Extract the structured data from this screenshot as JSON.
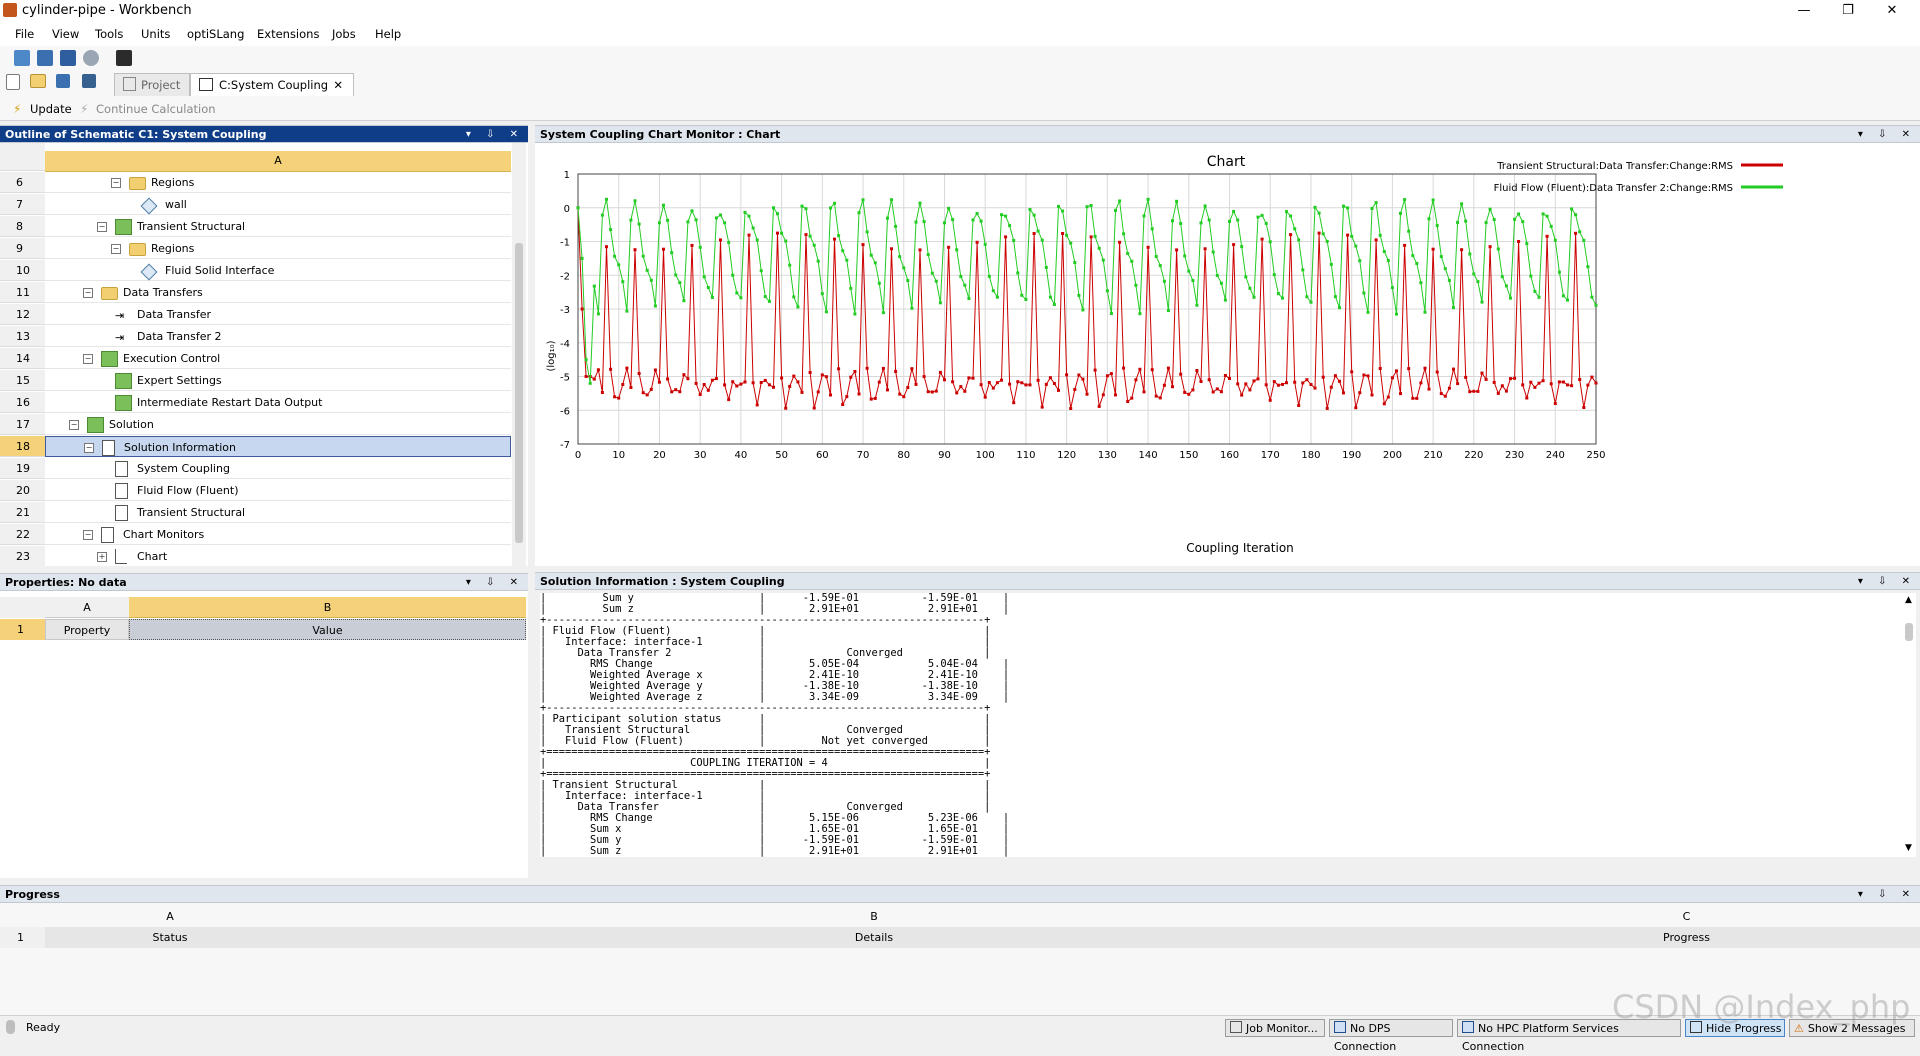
{
  "window": {
    "title": "cylinder-pipe - Workbench",
    "controls": [
      "—",
      "❐",
      "✕"
    ]
  },
  "menu": [
    "File",
    "View",
    "Tools",
    "Units",
    "optiSLang",
    "Extensions",
    "Jobs",
    "Help"
  ],
  "tabs": {
    "project": "Project",
    "system_coupling": "C:System Coupling",
    "close": "✕"
  },
  "actions": {
    "update": "Update",
    "continue": "Continue Calculation"
  },
  "outline": {
    "title": "Outline of Schematic C1: System Coupling",
    "buttons": "▾ ⇩ ✕",
    "column": "A",
    "rows": [
      {
        "num": "6",
        "label": "Regions",
        "indent": 1,
        "icon": "folder",
        "exp": "⊟"
      },
      {
        "num": "7",
        "label": "wall",
        "indent": 2,
        "icon": "cube",
        "exp": ""
      },
      {
        "num": "8",
        "label": "Transient Structural",
        "indent": 0,
        "icon": "green",
        "exp": "⊟"
      },
      {
        "num": "9",
        "label": "Regions",
        "indent": 1,
        "icon": "folder",
        "exp": "⊟"
      },
      {
        "num": "10",
        "label": "Fluid Solid Interface",
        "indent": 2,
        "icon": "cube",
        "exp": ""
      },
      {
        "num": "11",
        "label": "Data Transfers",
        "indent": -1,
        "icon": "folder",
        "exp": "⊟"
      },
      {
        "num": "12",
        "label": "Data Transfer",
        "indent": 0,
        "icon": "arrow",
        "exp": ""
      },
      {
        "num": "13",
        "label": "Data Transfer 2",
        "indent": 0,
        "icon": "arrow",
        "exp": ""
      },
      {
        "num": "14",
        "label": "Execution Control",
        "indent": -1,
        "icon": "green",
        "exp": "⊟"
      },
      {
        "num": "15",
        "label": "Expert Settings",
        "indent": 0,
        "icon": "green",
        "exp": ""
      },
      {
        "num": "16",
        "label": "Intermediate Restart Data Output",
        "indent": 0,
        "icon": "green",
        "exp": ""
      },
      {
        "num": "17",
        "label": "Solution",
        "indent": -2,
        "icon": "green",
        "exp": "⊟"
      },
      {
        "num": "18",
        "label": "Solution Information",
        "indent": -1,
        "icon": "doc",
        "exp": "⊟",
        "selected": true
      },
      {
        "num": "19",
        "label": "System Coupling",
        "indent": 0,
        "icon": "doc",
        "exp": ""
      },
      {
        "num": "20",
        "label": "Fluid Flow (Fluent)",
        "indent": 0,
        "icon": "doc",
        "exp": ""
      },
      {
        "num": "21",
        "label": "Transient Structural",
        "indent": 0,
        "icon": "doc",
        "exp": ""
      },
      {
        "num": "22",
        "label": "Chart Monitors",
        "indent": -1,
        "icon": "doc",
        "exp": "⊟"
      },
      {
        "num": "23",
        "label": "Chart",
        "indent": 0,
        "icon": "chart",
        "exp": "⊞"
      }
    ]
  },
  "properties": {
    "title": "Properties: No data",
    "buttons": "▾ ⇩ ✕",
    "col_a": "A",
    "col_b": "B",
    "row_num": "1",
    "property": "Property",
    "value": "Value"
  },
  "chart_panel": {
    "title": "System Coupling Chart Monitor : Chart",
    "buttons": "▾ ⇩ ✕"
  },
  "solution_panel": {
    "title": "Solution Information : System Coupling",
    "buttons": "▾ ⇩ ✕",
    "text": "|         Sum y                    |      -1.59E-01          -1.59E-01    |\n|         Sum z                    |       2.91E+01           2.91E+01    |\n+----------------------------------------------------------------------+\n| Fluid Flow (Fluent)              |                                   |\n|   Interface: interface-1         |                                   |\n|     Data Transfer 2              |             Converged             |\n|       RMS Change                 |       5.05E-04           5.04E-04    |\n|       Weighted Average x         |       2.41E-10           2.41E-10    |\n|       Weighted Average y         |      -1.38E-10          -1.38E-10    |\n|       Weighted Average z         |       3.34E-09           3.34E-09    |\n+----------------------------------------------------------------------+\n| Participant solution status      |                                   |\n|   Transient Structural           |             Converged             |\n|   Fluid Flow (Fluent)            |         Not yet converged         |\n+======================================================================+\n|                       COUPLING ITERATION = 4                         |\n+======================================================================+\n| Transient Structural             |                                   |\n|   Interface: interface-1         |                                   |\n|     Data Transfer                |             Converged             |\n|       RMS Change                 |       5.15E-06           5.23E-06    |\n|       Sum x                      |       1.65E-01           1.65E-01    |\n|       Sum y                      |      -1.59E-01          -1.59E-01    |\n|       Sum z                      |       2.91E+01           2.91E+01    |"
  },
  "progress": {
    "title": "Progress",
    "buttons": "▾ ⇩ ✕",
    "col_a": "A",
    "col_b": "B",
    "col_c": "C",
    "row_num": "1",
    "status": "Status",
    "details": "Details",
    "progress": "Progress"
  },
  "statusbar": {
    "ready": "Ready",
    "job_monitor": "Job Monitor...",
    "dps": "No DPS Connection",
    "hpc": "No HPC Platform Services Connection",
    "hide_progress": "Hide Progress",
    "messages": "Show 2 Messages"
  },
  "watermark": "CSDN @Index_php",
  "chart_data": {
    "type": "line",
    "title": "Chart",
    "xlabel": "Coupling Iteration",
    "ylabel": "(log₁₀)",
    "xlim": [
      0,
      250
    ],
    "ylim": [
      -7,
      1
    ],
    "xticks": [
      0,
      10,
      20,
      30,
      40,
      50,
      60,
      70,
      80,
      90,
      100,
      110,
      120,
      130,
      140,
      150,
      160,
      170,
      180,
      190,
      200,
      210,
      220,
      230,
      240,
      250
    ],
    "yticks": [
      1,
      0,
      -1,
      -2,
      -3,
      -4,
      -5,
      -6,
      -7
    ],
    "grid": true,
    "legend_position": "top-right",
    "series": [
      {
        "name": "Transient Structural:Data Transfer:Change:RMS",
        "color": "#cc0000",
        "cycle": [
          -1.0,
          -5.0,
          -5.7,
          -5.4,
          -5.2,
          -5.0,
          -5.3
        ]
      },
      {
        "name": "Fluid Flow (Fluent):Data Transfer 2:Change:RMS",
        "color": "#22cc22",
        "cycle": [
          0.0,
          -0.6,
          -1.2,
          -1.8,
          -2.4,
          -2.9,
          -0.2
        ]
      }
    ]
  }
}
